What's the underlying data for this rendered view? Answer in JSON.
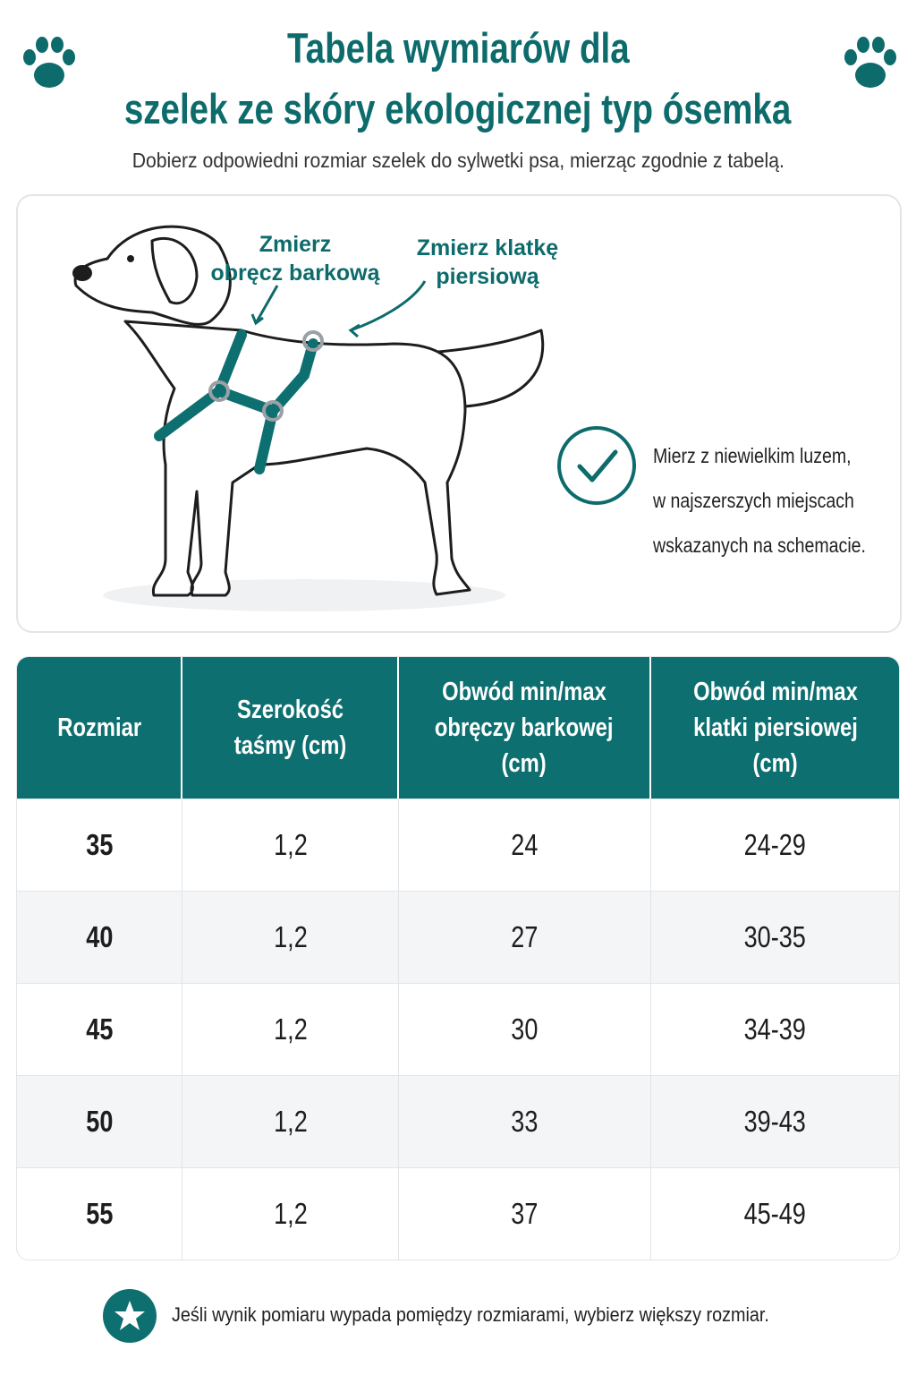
{
  "header": {
    "title_lines": [
      "Tabela wymiarów dla",
      "szelek ze skóry ekologicznej typ ósemka"
    ],
    "subtitle": "Dobierz odpowiedni rozmiar szelek do sylwetki psa, mierząc zgodnie z tabelą."
  },
  "diagram": {
    "label_shoulder": [
      "Zmierz",
      "obręcz barkową"
    ],
    "label_chest": [
      "Zmierz klatkę",
      "piersiową"
    ],
    "tip_lines": [
      "Mierz z niewielkim luzem,",
      "w najszerszych miejscach",
      "wskazanych na schemacie."
    ]
  },
  "table": {
    "header": [
      [
        "Rozmiar"
      ],
      [
        "Szerokość",
        "taśmy (cm)"
      ],
      [
        "Obwód min/max",
        "obręczy barkowej",
        "(cm)"
      ],
      [
        "Obwód min/max",
        "klatki piersiowej",
        "(cm)"
      ]
    ],
    "rows": [
      [
        "35",
        "1,2",
        "24",
        "24-29"
      ],
      [
        "40",
        "1,2",
        "27",
        "30-35"
      ],
      [
        "45",
        "1,2",
        "30",
        "34-39"
      ],
      [
        "50",
        "1,2",
        "33",
        "39-43"
      ],
      [
        "55",
        "1,2",
        "37",
        "45-49"
      ]
    ]
  },
  "footer": {
    "note": "Jeśli wynik pomiaru wypada pomiędzy rozmiarami, wybierz większy rozmiar."
  }
}
